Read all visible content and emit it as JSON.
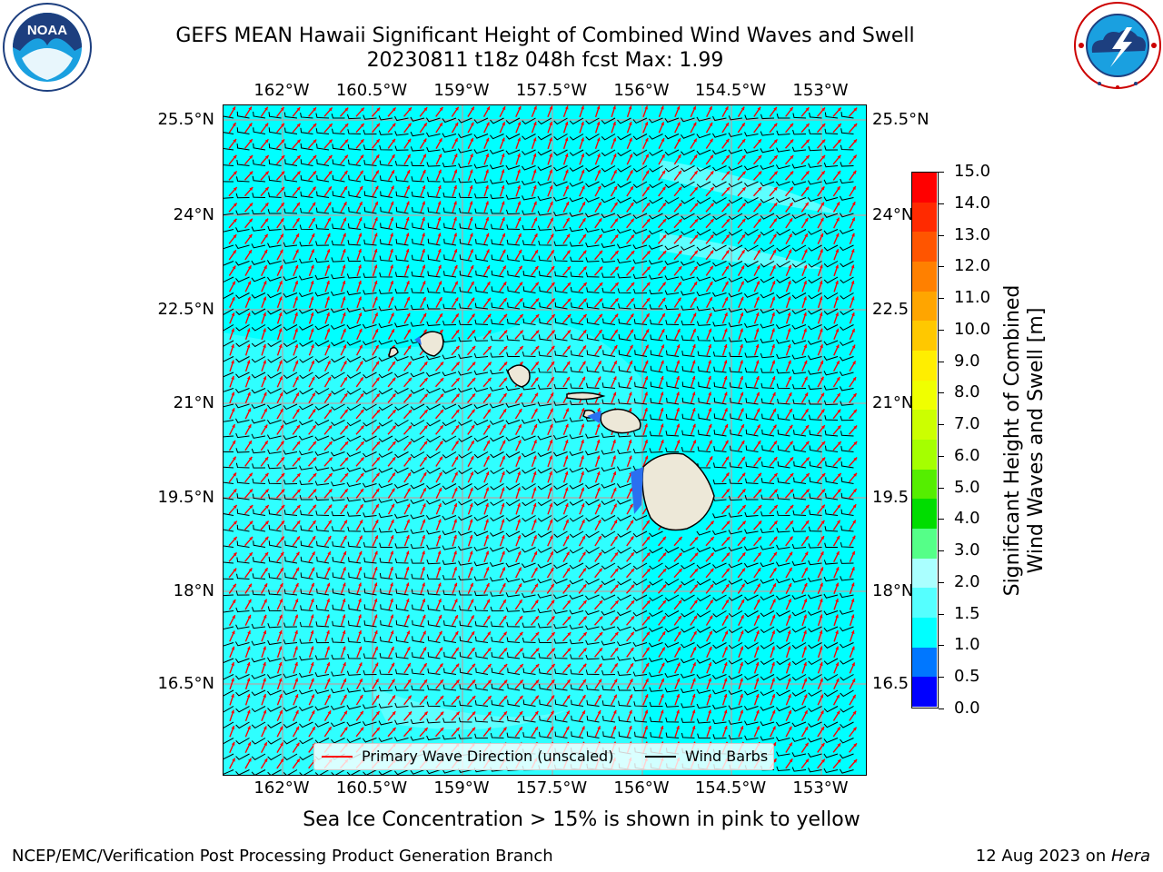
{
  "title": {
    "line1": "GEFS MEAN Hawaii Significant Height of Combined Wind Waves and Swell",
    "line2": "20230811 t18z 048h fcst   Max: 1.99"
  },
  "logos": {
    "left": {
      "icon": "noaa-logo",
      "text": "NOAA"
    },
    "right": {
      "icon": "nws-logo"
    }
  },
  "map": {
    "lon_labels": [
      "162°W",
      "160.5°W",
      "159°W",
      "157.5°W",
      "156°W",
      "154.5°W",
      "153°W"
    ],
    "lat_labels_left": [
      "25.5°N",
      "24°N",
      "22.5°N",
      "21°N",
      "19.5°N",
      "18°N",
      "16.5°N"
    ],
    "lat_labels_right": [
      "25.5°N",
      "24°N",
      "22.5",
      "21°N",
      "19.5",
      "18°N",
      "16.5"
    ],
    "ocean_color": "#00ffff",
    "land_color": "#ede8d8",
    "wave_direction_color": "#ff0000",
    "wind_barb_color": "#000000"
  },
  "legend": {
    "wave_direction": "Primary Wave Direction (unscaled)",
    "wind_barbs": "Wind Barbs"
  },
  "colorbar": {
    "label_line1": "Significant Height of Combined",
    "label_line2": "Wind Waves and Swell [m]",
    "ticks": [
      "15.0",
      "14.0",
      "13.0",
      "12.0",
      "11.0",
      "10.0",
      "9.0",
      "8.0",
      "7.0",
      "6.0",
      "5.0",
      "4.0",
      "3.0",
      "2.0",
      "1.5",
      "1.0",
      "0.5",
      "0.0"
    ],
    "colors": [
      "#ff0000",
      "#ff2a00",
      "#ff5500",
      "#ff8000",
      "#ffa500",
      "#ffc800",
      "#ffee00",
      "#f0ff00",
      "#ccff00",
      "#a5ff00",
      "#55ee00",
      "#00dd00",
      "#55ff88",
      "#aaffff",
      "#55ffff",
      "#00ffff",
      "#0077ff",
      "#0000ff"
    ]
  },
  "notes": {
    "sea_ice": "Sea Ice Concentration > 15% is shown in pink to yellow"
  },
  "footer": {
    "left": "NCEP/EMC/Verification Post Processing Product Generation Branch",
    "right_date": "12 Aug 2023 on ",
    "right_host": "Hera"
  }
}
